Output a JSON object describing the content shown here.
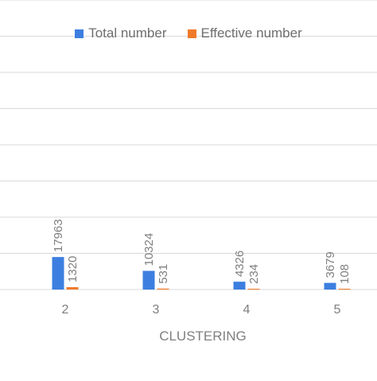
{
  "chart_data": {
    "type": "bar",
    "categories": [
      "2",
      "3",
      "4",
      "5"
    ],
    "series": [
      {
        "name": "Total number",
        "values": [
          17963,
          10324,
          4326,
          3679
        ],
        "color": "#3c7fe0"
      },
      {
        "name": "Effective number",
        "values": [
          1320,
          531,
          234,
          108
        ],
        "color": "#f07a2a"
      }
    ],
    "xlabel": "CLUSTERING",
    "ylabel": "",
    "ylim": [
      0,
      160000
    ],
    "grid": true,
    "legend": "top-center"
  }
}
